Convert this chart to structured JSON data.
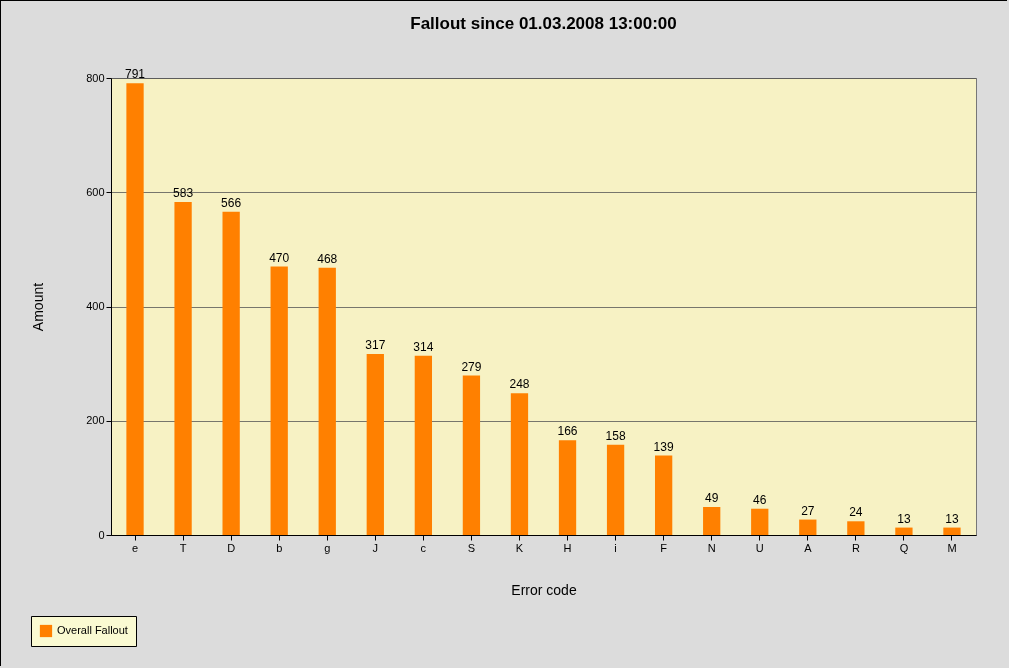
{
  "chart_data": {
    "type": "bar",
    "title": "Fallout since 01.03.2008 13:00:00",
    "xlabel": "Error code",
    "ylabel": "Amount",
    "categories": [
      "e",
      "T",
      "D",
      "b",
      "g",
      "J",
      "c",
      "S",
      "K",
      "H",
      "i",
      "F",
      "N",
      "U",
      "A",
      "R",
      "Q",
      "M"
    ],
    "series": [
      {
        "name": "Overall Fallout",
        "color": "#ff8000",
        "values": [
          791,
          583,
          566,
          470,
          468,
          317,
          314,
          279,
          248,
          166,
          158,
          139,
          49,
          46,
          27,
          24,
          13,
          13
        ]
      }
    ],
    "ylim": [
      0,
      800
    ],
    "yticks": [
      0,
      200,
      400,
      600,
      800
    ],
    "grid": "y",
    "legend": "bottom left",
    "data_labels": true
  }
}
